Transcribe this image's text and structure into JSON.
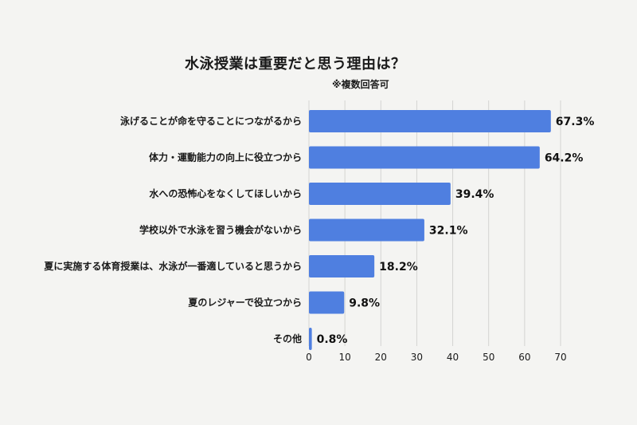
{
  "title": "水泳授業は重要だと思う理由は？",
  "subtitle": "※複数回答可",
  "colors": {
    "bar": "#4f7fe0",
    "background": "#f4f4f2",
    "grid": "#d4d4d2"
  },
  "chart_data": {
    "type": "bar",
    "orientation": "horizontal",
    "title": "水泳授業は重要だと思う理由は？",
    "subtitle": "※複数回答可",
    "categories": [
      "泳げることが命を守ることにつながるから",
      "体力・運動能力の向上に役立つから",
      "水への恐怖心をなくしてほしいから",
      "学校以外で水泳を習う機会がないから",
      "夏に実施する体育授業は、水泳が一番適していると思うから",
      "夏のレジャーで役立つから",
      "その他"
    ],
    "values": [
      67.3,
      64.2,
      39.4,
      32.1,
      18.2,
      9.8,
      0.8
    ],
    "value_labels": [
      "67.3%",
      "64.2%",
      "39.4%",
      "32.1%",
      "18.2%",
      "9.8%",
      "0.8%"
    ],
    "xlim": [
      0,
      70
    ],
    "xticks": [
      0,
      10,
      20,
      30,
      40,
      50,
      60,
      70
    ],
    "grid": true,
    "legend": "none"
  }
}
